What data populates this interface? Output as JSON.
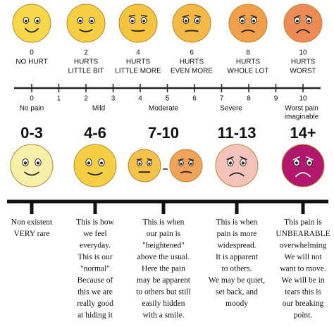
{
  "faces": [
    {
      "number": "0",
      "label": [
        "NO HURT"
      ]
    },
    {
      "number": "2",
      "label": [
        "HURTS",
        "LITTLE BIT"
      ]
    },
    {
      "number": "4",
      "label": [
        "HURTS",
        "LITTLE MORE"
      ]
    },
    {
      "number": "6",
      "label": [
        "HURTS",
        "EVEN MORE"
      ]
    },
    {
      "number": "8",
      "label": [
        "HURTS",
        "WHOLE LOT"
      ]
    },
    {
      "number": "10",
      "label": [
        "HURTS",
        "WORST"
      ]
    }
  ],
  "scale": {
    "ticks": [
      "0",
      "1",
      "2",
      "3",
      "4",
      "5",
      "6",
      "7",
      "8",
      "9",
      "10"
    ],
    "labels": [
      [
        "No pain"
      ],
      [
        "Mild"
      ],
      [
        "Moderate"
      ],
      [
        "Severe"
      ],
      [
        "Worst pain",
        "imaginable"
      ]
    ]
  },
  "groups": [
    {
      "range": "0-3",
      "text": [
        "Non existent",
        "VERY rare"
      ]
    },
    {
      "range": "4-6",
      "text": [
        "This is how",
        "we feel",
        "everyday.",
        "This is our",
        "\"normal\"",
        "Because of",
        "this we are",
        "really good",
        "at hiding it"
      ]
    },
    {
      "range": "7-10",
      "text": [
        "This is when",
        "our pain is",
        "\"heightened\"",
        "above the usual.",
        "Here the pain",
        "may be apparent",
        "to others but still",
        "easily hidden",
        "with a smile."
      ]
    },
    {
      "range": "11-13",
      "text": [
        "This is when",
        "pain is more",
        "widespread.",
        "It is apparent",
        "to others.",
        "We may be quiet,",
        "set back, and",
        "moody"
      ]
    },
    {
      "range": "14+",
      "text": [
        "This pain is",
        "UNBEARABLE",
        "overwhelming",
        "We will not",
        "want to move.",
        "We will be in",
        "tears this is",
        "our breaking",
        "point."
      ]
    }
  ]
}
